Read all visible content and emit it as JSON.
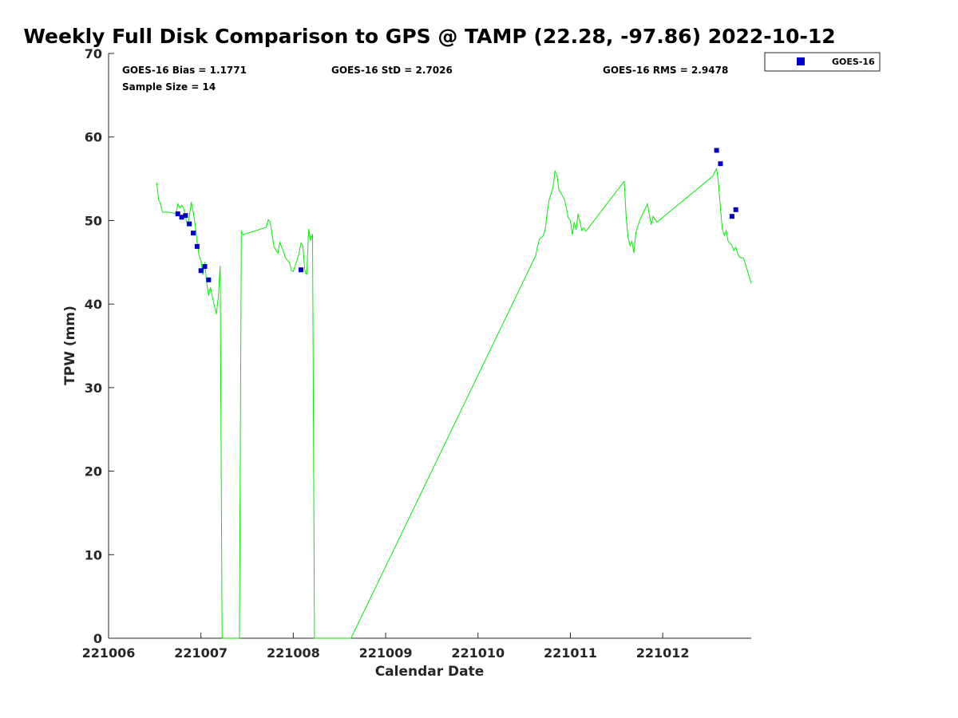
{
  "chart_data": {
    "type": "scatter",
    "title": "Weekly Full Disk Comparison to GPS @ TAMP (22.28, -97.86) 2022-10-12",
    "xlabel": "Calendar Date",
    "ylabel": "TPW (mm)",
    "xlim": [
      "2022-10-06",
      "2022-10-12T23:00"
    ],
    "ylim": [
      0,
      70
    ],
    "xticks": [
      {
        "date": "2022-10-06",
        "label": "221006"
      },
      {
        "date": "2022-10-07",
        "label": "221007"
      },
      {
        "date": "2022-10-08",
        "label": "221008"
      },
      {
        "date": "2022-10-09",
        "label": "221009"
      },
      {
        "date": "2022-10-10",
        "label": "221010"
      },
      {
        "date": "2022-10-11",
        "label": "221011"
      },
      {
        "date": "2022-10-12",
        "label": "221012"
      }
    ],
    "yticks": [
      0,
      10,
      20,
      30,
      40,
      50,
      60,
      70
    ],
    "grid": false,
    "legend_position": "top-right outside",
    "stats": {
      "bias": "GOES-16 Bias = 1.1771",
      "std": "GOES-16 StD = 2.7026",
      "rms": "GOES-16 RMS = 2.9478",
      "sample_size": "Sample Size = 14"
    },
    "series": [
      {
        "name": "GOES-16",
        "kind": "scatter",
        "marker": "square",
        "color": "#0000cc",
        "points": [
          [
            "2022-10-06T18:00",
            50.8
          ],
          [
            "2022-10-06T19:00",
            50.4
          ],
          [
            "2022-10-06T20:00",
            50.6
          ],
          [
            "2022-10-06T21:00",
            49.6
          ],
          [
            "2022-10-06T22:00",
            48.5
          ],
          [
            "2022-10-06T23:00",
            46.9
          ],
          [
            "2022-10-07T00:00",
            44.0
          ],
          [
            "2022-10-07T01:00",
            44.5
          ],
          [
            "2022-10-07T02:00",
            42.9
          ],
          [
            "2022-10-08T02:00",
            44.1
          ],
          [
            "2022-10-12T14:00",
            58.4
          ],
          [
            "2022-10-12T15:00",
            56.8
          ],
          [
            "2022-10-12T18:00",
            50.5
          ],
          [
            "2022-10-12T19:00",
            51.3
          ]
        ]
      },
      {
        "name": "",
        "kind": "line",
        "color": "#00ee00",
        "points": [
          [
            "2022-10-06T12:30",
            54.5
          ],
          [
            "2022-10-06T13:00",
            52.5
          ],
          [
            "2022-10-06T13:30",
            52.0
          ],
          [
            "2022-10-06T14:00",
            51.0
          ],
          [
            "2022-10-06T16:00",
            51.0
          ],
          [
            "2022-10-06T17:30",
            50.8
          ],
          [
            "2022-10-06T18:00",
            52.0
          ],
          [
            "2022-10-06T18:30",
            51.5
          ],
          [
            "2022-10-06T19:00",
            51.8
          ],
          [
            "2022-10-06T19:30",
            51.5
          ],
          [
            "2022-10-06T20:00",
            50.5
          ],
          [
            "2022-10-06T20:30",
            49.3
          ],
          [
            "2022-10-06T21:00",
            50.5
          ],
          [
            "2022-10-06T21:30",
            52.2
          ],
          [
            "2022-10-06T22:00",
            51.0
          ],
          [
            "2022-10-06T22:30",
            49.5
          ],
          [
            "2022-10-06T23:00",
            47.5
          ],
          [
            "2022-10-06T23:30",
            45.8
          ],
          [
            "2022-10-07T00:00",
            45.2
          ],
          [
            "2022-10-07T00:30",
            43.5
          ],
          [
            "2022-10-07T01:00",
            45.0
          ],
          [
            "2022-10-07T01:30",
            42.5
          ],
          [
            "2022-10-07T02:00",
            41.0
          ],
          [
            "2022-10-07T02:30",
            42.0
          ],
          [
            "2022-10-07T03:00",
            40.8
          ],
          [
            "2022-10-07T04:00",
            38.8
          ],
          [
            "2022-10-07T04:30",
            40.8
          ],
          [
            "2022-10-07T05:00",
            44.6
          ],
          [
            "2022-10-07T05:30",
            0
          ],
          [
            "2022-10-07T10:00",
            0
          ],
          [
            "2022-10-07T10:30",
            48.7
          ],
          [
            "2022-10-07T11:00",
            48.3
          ],
          [
            "2022-10-07T17:00",
            49.2
          ],
          [
            "2022-10-07T17:30",
            50.1
          ],
          [
            "2022-10-07T18:00",
            49.8
          ],
          [
            "2022-10-07T19:00",
            46.8
          ],
          [
            "2022-10-07T20:00",
            46.1
          ],
          [
            "2022-10-07T20:30",
            47.4
          ],
          [
            "2022-10-07T21:30",
            46.2
          ],
          [
            "2022-10-07T22:00",
            45.5
          ],
          [
            "2022-10-07T23:00",
            45.0
          ],
          [
            "2022-10-07T23:30",
            44.0
          ],
          [
            "2022-10-08T00:00",
            43.9
          ],
          [
            "2022-10-08T01:00",
            45.3
          ],
          [
            "2022-10-08T01:30",
            46.1
          ],
          [
            "2022-10-08T02:00",
            47.3
          ],
          [
            "2022-10-08T02:30",
            47.0
          ],
          [
            "2022-10-08T03:00",
            44.0
          ],
          [
            "2022-10-08T03:30",
            43.5
          ],
          [
            "2022-10-08T04:00",
            49.0
          ],
          [
            "2022-10-08T04:30",
            47.6
          ],
          [
            "2022-10-08T05:00",
            48.4
          ],
          [
            "2022-10-08T05:30",
            0
          ],
          [
            "2022-10-08T15:00",
            0
          ],
          [
            "2022-10-10T15:00",
            45.8
          ],
          [
            "2022-10-10T15:30",
            47.0
          ],
          [
            "2022-10-10T16:00",
            47.8
          ],
          [
            "2022-10-10T17:00",
            48.2
          ],
          [
            "2022-10-10T17:30",
            49.0
          ],
          [
            "2022-10-10T18:00",
            51.0
          ],
          [
            "2022-10-10T18:30",
            52.5
          ],
          [
            "2022-10-10T19:30",
            54.0
          ],
          [
            "2022-10-10T20:00",
            55.9
          ],
          [
            "2022-10-10T20:30",
            55.5
          ],
          [
            "2022-10-10T21:00",
            53.7
          ],
          [
            "2022-10-10T22:30",
            52.5
          ],
          [
            "2022-10-10T23:30",
            50.3
          ],
          [
            "2022-10-11T00:00",
            50.0
          ],
          [
            "2022-10-11T00:30",
            48.3
          ],
          [
            "2022-10-11T01:00",
            49.8
          ],
          [
            "2022-10-11T01:30",
            48.9
          ],
          [
            "2022-10-11T02:00",
            50.8
          ],
          [
            "2022-10-11T03:00",
            48.8
          ],
          [
            "2022-10-11T03:30",
            49.1
          ],
          [
            "2022-10-11T04:00",
            48.7
          ],
          [
            "2022-10-11T05:00",
            49.3
          ],
          [
            "2022-10-11T14:00",
            54.7
          ],
          [
            "2022-10-11T14:30",
            50.5
          ],
          [
            "2022-10-11T15:00",
            48.0
          ],
          [
            "2022-10-11T15:30",
            47.0
          ],
          [
            "2022-10-11T16:00",
            47.5
          ],
          [
            "2022-10-11T16:30",
            46.1
          ],
          [
            "2022-10-11T17:00",
            48.5
          ],
          [
            "2022-10-11T18:00",
            50.0
          ],
          [
            "2022-10-11T20:00",
            52.0
          ],
          [
            "2022-10-11T21:00",
            49.5
          ],
          [
            "2022-10-11T21:30",
            50.5
          ],
          [
            "2022-10-11T22:30",
            49.8
          ],
          [
            "2022-10-12T13:00",
            55.3
          ],
          [
            "2022-10-12T13:30",
            55.8
          ],
          [
            "2022-10-12T14:00",
            56.2
          ],
          [
            "2022-10-12T14:30",
            54.5
          ],
          [
            "2022-10-12T15:00",
            51.5
          ],
          [
            "2022-10-12T15:30",
            49.0
          ],
          [
            "2022-10-12T16:00",
            48.2
          ],
          [
            "2022-10-12T16:30",
            48.8
          ],
          [
            "2022-10-12T17:00",
            47.5
          ],
          [
            "2022-10-12T18:00",
            47.0
          ],
          [
            "2022-10-12T18:30",
            46.4
          ],
          [
            "2022-10-12T19:00",
            46.8
          ],
          [
            "2022-10-12T19:30",
            46.0
          ],
          [
            "2022-10-12T20:00",
            45.6
          ],
          [
            "2022-10-12T21:00",
            45.5
          ],
          [
            "2022-10-12T23:00",
            42.5
          ]
        ]
      }
    ]
  }
}
